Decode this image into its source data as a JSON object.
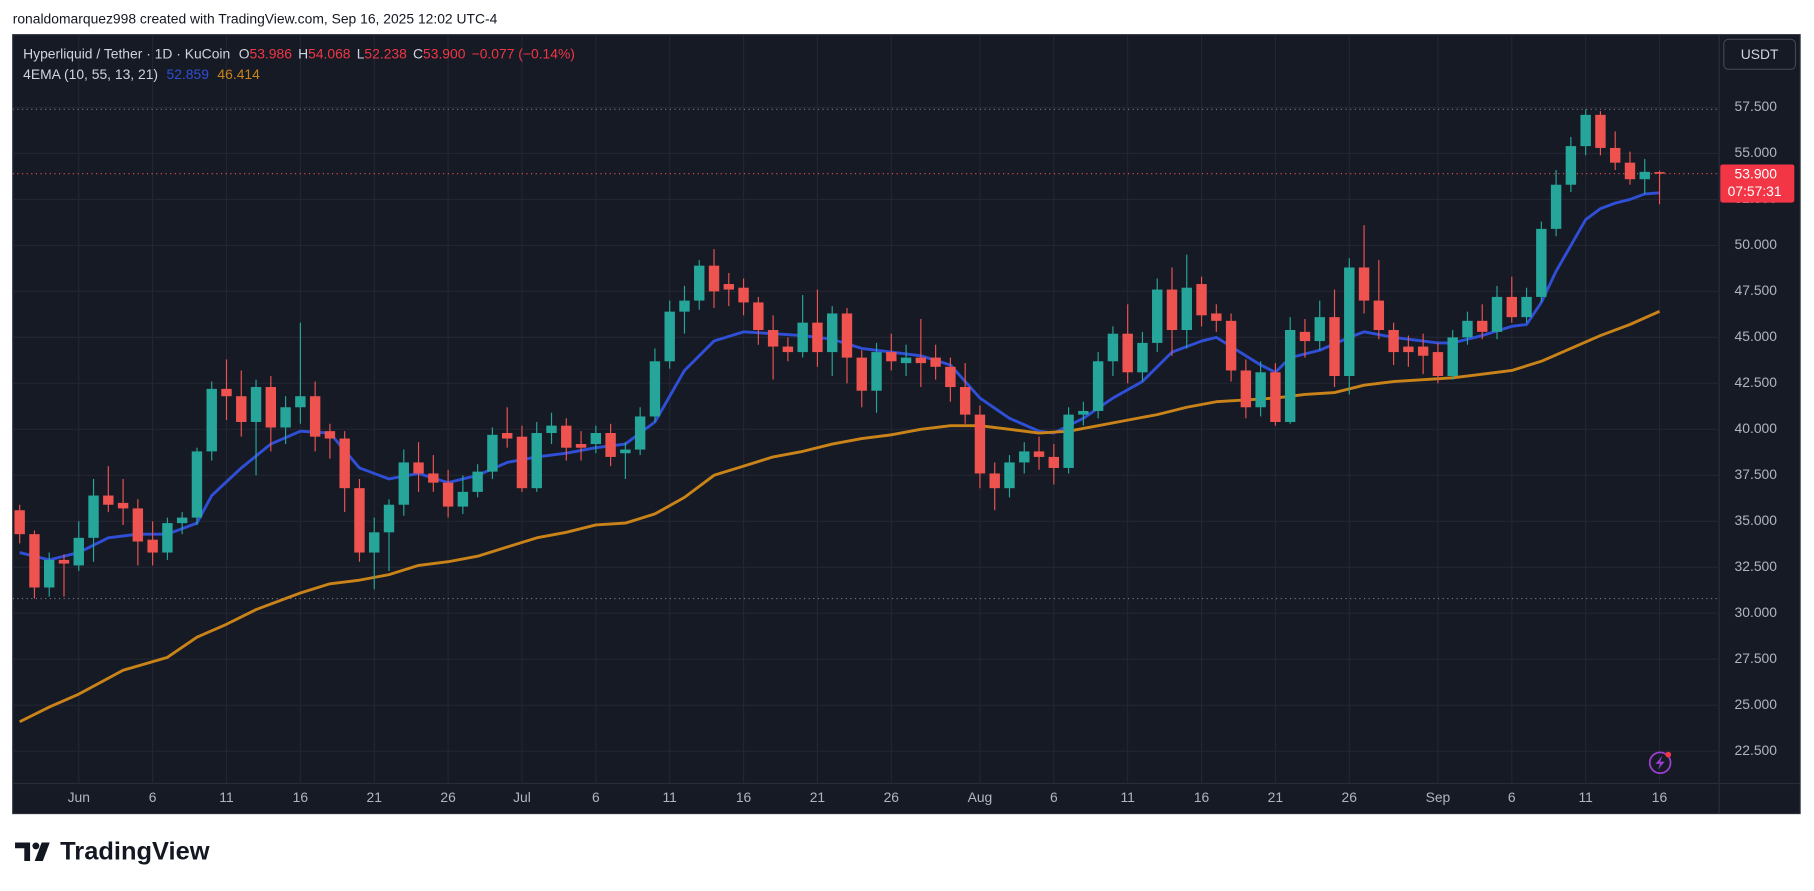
{
  "header": {
    "attribution": "ronaldomarquez998 created with TradingView.com, Sep 16, 2025 12:02 UTC-4",
    "brand": "TradingView"
  },
  "chart_data": {
    "type": "candlestick",
    "title": "Hyperliquid / Tether · 1D · KuCoin",
    "legend": {
      "open_label": "O",
      "high_label": "H",
      "low_label": "L",
      "close_label": "C",
      "open": 53.986,
      "high": 54.068,
      "low": 52.238,
      "close": {
        "value": 53.9,
        "label": "53.900"
      },
      "change": "−0.077 (−0.14%)"
    },
    "indicator": "4EMA (10, 55, 13, 21)",
    "currency": "USDT",
    "countdown": "07:57:31",
    "categories": [
      "May 28",
      "May 29",
      "May 30",
      "May 31",
      "Jun 1",
      "Jun 2",
      "Jun 3",
      "Jun 4",
      "Jun 5",
      "Jun 6",
      "Jun 7",
      "Jun 8",
      "Jun 9",
      "Jun 10",
      "Jun 11",
      "Jun 12",
      "Jun 13",
      "Jun 14",
      "Jun 15",
      "Jun 16",
      "Jun 17",
      "Jun 18",
      "Jun 19",
      "Jun 20",
      "Jun 21",
      "Jun 22",
      "Jun 23",
      "Jun 24",
      "Jun 25",
      "Jun 26",
      "Jun 27",
      "Jun 28",
      "Jun 29",
      "Jun 30",
      "Jul 1",
      "Jul 2",
      "Jul 3",
      "Jul 4",
      "Jul 5",
      "Jul 6",
      "Jul 7",
      "Jul 8",
      "Jul 9",
      "Jul 10",
      "Jul 11",
      "Jul 12",
      "Jul 13",
      "Jul 14",
      "Jul 15",
      "Jul 16",
      "Jul 17",
      "Jul 18",
      "Jul 19",
      "Jul 20",
      "Jul 21",
      "Jul 22",
      "Jul 23",
      "Jul 24",
      "Jul 25",
      "Jul 26",
      "Jul 27",
      "Jul 28",
      "Jul 29",
      "Jul 30",
      "Jul 31",
      "Aug 1",
      "Aug 2",
      "Aug 3",
      "Aug 4",
      "Aug 5",
      "Aug 6",
      "Aug 7",
      "Aug 8",
      "Aug 9",
      "Aug 10",
      "Aug 11",
      "Aug 12",
      "Aug 13",
      "Aug 14",
      "Aug 15",
      "Aug 16",
      "Aug 17",
      "Aug 18",
      "Aug 19",
      "Aug 20",
      "Aug 21",
      "Aug 22",
      "Aug 23",
      "Aug 24",
      "Aug 25",
      "Aug 26",
      "Aug 27",
      "Aug 28",
      "Aug 29",
      "Aug 30",
      "Aug 31",
      "Sep 1",
      "Sep 2",
      "Sep 3",
      "Sep 4",
      "Sep 5",
      "Sep 6",
      "Sep 7",
      "Sep 8",
      "Sep 9",
      "Sep 10",
      "Sep 11",
      "Sep 12",
      "Sep 13",
      "Sep 14",
      "Sep 15",
      "Sep 16"
    ],
    "open": [
      35.6,
      34.3,
      31.4,
      32.9,
      32.6,
      34.1,
      36.4,
      36.0,
      35.7,
      34.0,
      33.3,
      34.9,
      35.2,
      38.8,
      42.2,
      41.8,
      40.4,
      42.3,
      40.1,
      41.2,
      41.8,
      39.9,
      39.5,
      36.8,
      33.3,
      34.4,
      35.9,
      38.2,
      37.6,
      37.1,
      35.8,
      36.6,
      37.7,
      39.8,
      39.6,
      36.8,
      39.8,
      40.2,
      39.2,
      39.2,
      39.8,
      38.7,
      38.9,
      40.7,
      43.7,
      46.4,
      47.0,
      48.9,
      47.9,
      47.7,
      46.9,
      45.4,
      44.5,
      44.2,
      45.8,
      44.2,
      46.3,
      43.9,
      42.1,
      44.2,
      43.6,
      43.9,
      43.9,
      43.4,
      42.3,
      40.8,
      37.6,
      36.8,
      38.2,
      38.8,
      38.5,
      37.9,
      40.8,
      41.0,
      43.7,
      45.2,
      43.1,
      44.7,
      47.6,
      45.4,
      47.9,
      46.3,
      45.9,
      43.2,
      41.2,
      43.1,
      40.4,
      45.3,
      44.8,
      46.1,
      42.9,
      48.8,
      47.0,
      45.4,
      44.5,
      44.5,
      44.2,
      42.9,
      45.0,
      45.9,
      45.3,
      47.2,
      46.1,
      47.2,
      50.9,
      53.3,
      55.4,
      57.1,
      55.3,
      54.5,
      53.6,
      53.986
    ],
    "high": [
      35.9,
      34.5,
      33.3,
      33.2,
      35.0,
      37.3,
      38.0,
      37.3,
      36.2,
      35.0,
      35.2,
      35.5,
      39.0,
      42.6,
      43.8,
      43.2,
      42.7,
      42.9,
      41.8,
      45.8,
      42.6,
      40.3,
      39.9,
      37.3,
      35.2,
      36.2,
      38.9,
      39.3,
      38.6,
      37.8,
      37.5,
      38.1,
      40.1,
      41.2,
      40.2,
      40.4,
      40.9,
      40.6,
      39.9,
      40.2,
      40.3,
      39.3,
      41.2,
      44.4,
      47.0,
      47.8,
      49.2,
      49.8,
      48.5,
      48.2,
      47.2,
      46.2,
      45.0,
      47.3,
      47.6,
      46.7,
      46.6,
      44.3,
      44.7,
      45.2,
      44.6,
      46.0,
      44.6,
      43.9,
      43.6,
      41.3,
      38.2,
      38.6,
      39.3,
      39.6,
      39.2,
      41.2,
      41.5,
      44.2,
      45.6,
      46.8,
      45.3,
      48.2,
      48.8,
      49.5,
      48.3,
      46.8,
      46.3,
      43.8,
      43.7,
      43.6,
      46.1,
      46.0,
      47.0,
      47.6,
      49.3,
      51.1,
      49.2,
      45.8,
      45.1,
      45.2,
      44.7,
      45.4,
      46.4,
      46.8,
      47.8,
      48.3,
      47.7,
      51.3,
      54.1,
      55.9,
      57.4,
      57.3,
      56.2,
      55.1,
      54.7,
      54.068
    ],
    "low": [
      33.8,
      30.8,
      30.9,
      30.9,
      32.3,
      32.8,
      35.5,
      34.8,
      32.6,
      32.6,
      32.9,
      34.3,
      34.8,
      38.3,
      40.5,
      39.6,
      37.5,
      38.8,
      39.2,
      40.3,
      38.8,
      38.4,
      35.5,
      32.8,
      31.3,
      32.3,
      35.3,
      36.6,
      36.6,
      35.2,
      35.4,
      36.3,
      37.3,
      39.0,
      36.6,
      36.6,
      39.2,
      38.3,
      38.3,
      38.7,
      38.0,
      37.3,
      38.6,
      40.4,
      43.3,
      45.2,
      46.5,
      46.6,
      46.7,
      46.2,
      44.6,
      42.7,
      43.7,
      43.9,
      43.4,
      42.9,
      42.5,
      41.2,
      40.9,
      43.2,
      42.9,
      42.3,
      42.7,
      41.5,
      40.3,
      36.8,
      35.6,
      36.3,
      37.6,
      37.8,
      37.0,
      37.6,
      40.2,
      40.6,
      42.9,
      42.5,
      42.6,
      44.2,
      44.0,
      44.4,
      45.6,
      45.3,
      42.6,
      40.6,
      40.7,
      40.2,
      40.3,
      43.9,
      44.3,
      42.3,
      41.9,
      46.3,
      44.9,
      43.5,
      43.4,
      43.0,
      42.5,
      42.7,
      44.6,
      44.9,
      44.9,
      45.8,
      45.8,
      46.9,
      50.5,
      52.9,
      54.9,
      54.9,
      54.1,
      53.3,
      52.8,
      52.238
    ],
    "close": [
      34.3,
      31.4,
      32.9,
      32.7,
      34.1,
      36.4,
      35.9,
      35.7,
      33.9,
      33.3,
      34.9,
      35.2,
      38.8,
      42.2,
      41.8,
      40.4,
      42.3,
      40.1,
      41.2,
      41.8,
      39.6,
      39.5,
      36.8,
      33.3,
      34.4,
      35.9,
      38.2,
      37.6,
      37.1,
      35.8,
      36.6,
      37.7,
      39.7,
      39.5,
      36.8,
      39.8,
      40.2,
      39.0,
      39.0,
      39.8,
      38.5,
      38.9,
      40.7,
      43.7,
      46.4,
      47.0,
      48.9,
      47.5,
      47.6,
      46.9,
      45.4,
      44.5,
      44.2,
      45.8,
      44.2,
      46.3,
      43.9,
      42.1,
      44.2,
      43.7,
      43.9,
      43.6,
      43.4,
      42.3,
      40.8,
      37.6,
      36.8,
      38.2,
      38.8,
      38.5,
      37.9,
      40.8,
      41.0,
      43.7,
      45.2,
      43.1,
      44.7,
      47.6,
      45.4,
      47.7,
      46.2,
      45.9,
      43.2,
      41.2,
      43.1,
      40.4,
      45.4,
      44.8,
      46.1,
      42.9,
      48.8,
      47.0,
      45.4,
      44.2,
      44.2,
      44.0,
      42.9,
      45.0,
      45.9,
      45.3,
      47.2,
      46.1,
      47.2,
      50.9,
      53.3,
      55.4,
      57.1,
      55.3,
      54.5,
      53.6,
      54.0,
      53.9
    ],
    "up_color": "#26a69a",
    "down_color": "#ef5350",
    "series": [
      {
        "color": "#2f4fd6",
        "x": [
          "May 28",
          "May 30",
          "Jun 1",
          "Jun 3",
          "Jun 5",
          "Jun 7",
          "Jun 9",
          "Jun 10",
          "Jun 12",
          "Jun 14",
          "Jun 16",
          "Jun 18",
          "Jun 20",
          "Jun 22",
          "Jun 24",
          "Jun 26",
          "Jun 28",
          "Jun 30",
          "Jul 2",
          "Jul 4",
          "Jul 6",
          "Jul 8",
          "Jul 10",
          "Jul 12",
          "Jul 14",
          "Jul 16",
          "Jul 18",
          "Jul 20",
          "Jul 22",
          "Jul 24",
          "Jul 26",
          "Jul 28",
          "Jul 30",
          "Aug 1",
          "Aug 3",
          "Aug 5",
          "Aug 6",
          "Aug 8",
          "Aug 10",
          "Aug 12",
          "Aug 14",
          "Aug 16",
          "Aug 17",
          "Aug 18",
          "Aug 20",
          "Aug 21",
          "Aug 22",
          "Aug 24",
          "Aug 26",
          "Aug 27",
          "Aug 29",
          "Aug 31",
          "Sep 1",
          "Sep 2",
          "Sep 4",
          "Sep 6",
          "Sep 7",
          "Sep 8",
          "Sep 9",
          "Sep 10",
          "Sep 11",
          "Sep 12",
          "Sep 13",
          "Sep 14",
          "Sep 15",
          "Sep 16"
        ],
        "values": [
          33.3,
          32.9,
          33.3,
          34.1,
          34.3,
          34.3,
          34.9,
          36.4,
          37.9,
          39.2,
          39.9,
          39.8,
          37.9,
          37.3,
          37.6,
          37.1,
          37.5,
          38.2,
          38.5,
          38.7,
          39.0,
          39.2,
          40.4,
          43.2,
          44.8,
          45.3,
          45.2,
          45.1,
          44.9,
          44.4,
          44.2,
          44.0,
          43.5,
          41.7,
          40.6,
          39.9,
          39.8,
          40.6,
          41.7,
          42.6,
          44.2,
          44.8,
          45.0,
          44.5,
          43.5,
          43.1,
          43.9,
          44.3,
          45.0,
          45.3,
          45.0,
          44.8,
          44.7,
          44.7,
          45.1,
          45.6,
          45.7,
          46.9,
          48.6,
          50.0,
          51.4,
          52.0,
          52.3,
          52.5,
          52.8,
          52.859
        ]
      },
      {
        "color": "#c98318",
        "x": [
          "May 28",
          "May 30",
          "Jun 1",
          "Jun 4",
          "Jun 7",
          "Jun 9",
          "Jun 11",
          "Jun 13",
          "Jun 16",
          "Jun 18",
          "Jun 20",
          "Jun 22",
          "Jun 24",
          "Jun 26",
          "Jun 28",
          "Jun 30",
          "Jul 2",
          "Jul 4",
          "Jul 6",
          "Jul 8",
          "Jul 10",
          "Jul 12",
          "Jul 14",
          "Jul 16",
          "Jul 18",
          "Jul 20",
          "Jul 22",
          "Jul 24",
          "Jul 26",
          "Jul 28",
          "Jul 30",
          "Aug 1",
          "Aug 3",
          "Aug 5",
          "Aug 7",
          "Aug 9",
          "Aug 11",
          "Aug 13",
          "Aug 15",
          "Aug 17",
          "Aug 19",
          "Aug 21",
          "Aug 23",
          "Aug 25",
          "Aug 27",
          "Aug 29",
          "Aug 31",
          "Sep 2",
          "Sep 4",
          "Sep 6",
          "Sep 8",
          "Sep 10",
          "Sep 12",
          "Sep 14",
          "Sep 16"
        ],
        "values": [
          24.1,
          24.9,
          25.6,
          26.9,
          27.6,
          28.7,
          29.4,
          30.2,
          31.1,
          31.6,
          31.8,
          32.1,
          32.6,
          32.8,
          33.1,
          33.6,
          34.1,
          34.4,
          34.8,
          34.9,
          35.4,
          36.3,
          37.5,
          38.0,
          38.5,
          38.8,
          39.2,
          39.5,
          39.7,
          40.0,
          40.2,
          40.2,
          40.0,
          39.8,
          39.9,
          40.2,
          40.5,
          40.8,
          41.2,
          41.5,
          41.6,
          41.7,
          41.9,
          42.0,
          42.4,
          42.6,
          42.7,
          42.8,
          43.0,
          43.2,
          43.7,
          44.4,
          45.1,
          45.7,
          46.414
        ]
      }
    ],
    "ylim": [
      20.74,
      61.46
    ],
    "yticks": [
      {
        "value": 22.5,
        "label": "22.500"
      },
      {
        "value": 25,
        "label": "25.000"
      },
      {
        "value": 27.5,
        "label": "27.500"
      },
      {
        "value": 30,
        "label": "30.000"
      },
      {
        "value": 32.5,
        "label": "32.500"
      },
      {
        "value": 35,
        "label": "35.000"
      },
      {
        "value": 37.5,
        "label": "37.500"
      },
      {
        "value": 40,
        "label": "40.000"
      },
      {
        "value": 42.5,
        "label": "42.500"
      },
      {
        "value": 45,
        "label": "45.000"
      },
      {
        "value": 47.5,
        "label": "47.500"
      },
      {
        "value": 50,
        "label": "50.000"
      },
      {
        "value": 52.5,
        "label": "52.500"
      },
      {
        "value": 55,
        "label": "55.000"
      },
      {
        "value": 57.5,
        "label": "57.500"
      }
    ],
    "xticks": [
      {
        "value": "Jun 1",
        "label": "Jun"
      },
      {
        "value": "Jun 6",
        "label": "6"
      },
      {
        "value": "Jun 11",
        "label": "11"
      },
      {
        "value": "Jun 16",
        "label": "16"
      },
      {
        "value": "Jun 21",
        "label": "21"
      },
      {
        "value": "Jun 26",
        "label": "26"
      },
      {
        "value": "Jul 1",
        "label": "Jul"
      },
      {
        "value": "Jul 6",
        "label": "6"
      },
      {
        "value": "Jul 11",
        "label": "11"
      },
      {
        "value": "Jul 16",
        "label": "16"
      },
      {
        "value": "Jul 21",
        "label": "21"
      },
      {
        "value": "Jul 26",
        "label": "26"
      },
      {
        "value": "Aug 1",
        "label": "Aug"
      },
      {
        "value": "Aug 6",
        "label": "6"
      },
      {
        "value": "Aug 11",
        "label": "11"
      },
      {
        "value": "Aug 16",
        "label": "16"
      },
      {
        "value": "Aug 21",
        "label": "21"
      },
      {
        "value": "Aug 26",
        "label": "26"
      },
      {
        "value": "Sep 1",
        "label": "Sep"
      },
      {
        "value": "Sep 6",
        "label": "6"
      },
      {
        "value": "Sep 11",
        "label": "11"
      },
      {
        "value": "Sep 16",
        "label": "16"
      }
    ],
    "grid": true
  }
}
